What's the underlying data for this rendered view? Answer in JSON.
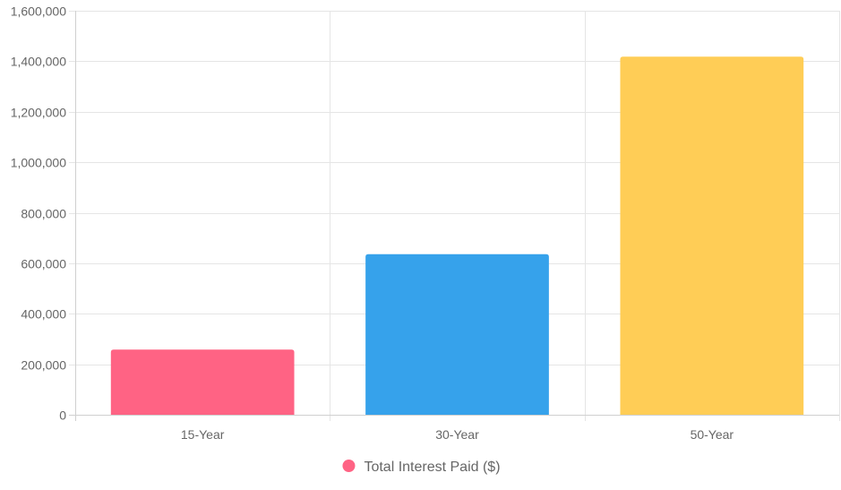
{
  "chart_data": {
    "type": "bar",
    "categories": [
      "15-Year",
      "30-Year",
      "50-Year"
    ],
    "series": [
      {
        "name": "Total Interest Paid ($)",
        "values": [
          258000,
          636000,
          1418000
        ],
        "colors": [
          "#ff6384",
          "#36a2eb",
          "#ffcd56"
        ]
      }
    ],
    "title": "",
    "xlabel": "",
    "ylabel": "",
    "ylim": [
      0,
      1600000
    ],
    "yticks": [
      0,
      200000,
      400000,
      600000,
      800000,
      1000000,
      1200000,
      1400000,
      1600000
    ],
    "ytick_labels": [
      "0",
      "200,000",
      "400,000",
      "600,000",
      "800,000",
      "1,000,000",
      "1,200,000",
      "1,400,000",
      "1,600,000"
    ],
    "grid": true,
    "legend": {
      "position": "bottom",
      "label": "Total Interest Paid ($)",
      "marker_color": "#ff6384"
    }
  }
}
